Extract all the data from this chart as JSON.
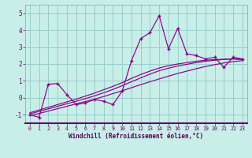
{
  "xlabel": "Windchill (Refroidissement éolien,°C)",
  "ylabel": "",
  "xlim": [
    -0.5,
    23.5
  ],
  "ylim": [
    -1.5,
    5.5
  ],
  "yticks": [
    -1,
    0,
    1,
    2,
    3,
    4,
    5
  ],
  "xticks": [
    0,
    1,
    2,
    3,
    4,
    5,
    6,
    7,
    8,
    9,
    10,
    11,
    12,
    13,
    14,
    15,
    16,
    17,
    18,
    19,
    20,
    21,
    22,
    23
  ],
  "bg_color": "#c8eee8",
  "line_color": "#880088",
  "grid_color": "#99cccc",
  "main_y": [
    -1.0,
    -1.15,
    0.8,
    0.85,
    0.2,
    -0.4,
    -0.3,
    -0.1,
    -0.2,
    -0.4,
    0.4,
    2.2,
    3.5,
    3.85,
    4.85,
    2.9,
    4.1,
    2.6,
    2.5,
    2.3,
    2.4,
    1.8,
    2.4,
    2.3
  ],
  "smooth1_y": [
    -1.05,
    -0.92,
    -0.78,
    -0.64,
    -0.5,
    -0.36,
    -0.22,
    -0.08,
    0.08,
    0.25,
    0.42,
    0.6,
    0.78,
    0.95,
    1.12,
    1.28,
    1.44,
    1.58,
    1.72,
    1.85,
    1.96,
    2.06,
    2.14,
    2.2
  ],
  "smooth2_y": [
    -0.95,
    -0.8,
    -0.65,
    -0.5,
    -0.35,
    -0.2,
    -0.05,
    0.12,
    0.3,
    0.5,
    0.72,
    0.95,
    1.18,
    1.4,
    1.6,
    1.75,
    1.88,
    1.98,
    2.08,
    2.16,
    2.22,
    2.27,
    2.3,
    2.28
  ],
  "smooth3_y": [
    -0.88,
    -0.72,
    -0.56,
    -0.4,
    -0.24,
    -0.08,
    0.1,
    0.28,
    0.48,
    0.68,
    0.9,
    1.15,
    1.38,
    1.58,
    1.76,
    1.9,
    2.0,
    2.08,
    2.16,
    2.22,
    2.26,
    2.28,
    2.3,
    2.27
  ]
}
